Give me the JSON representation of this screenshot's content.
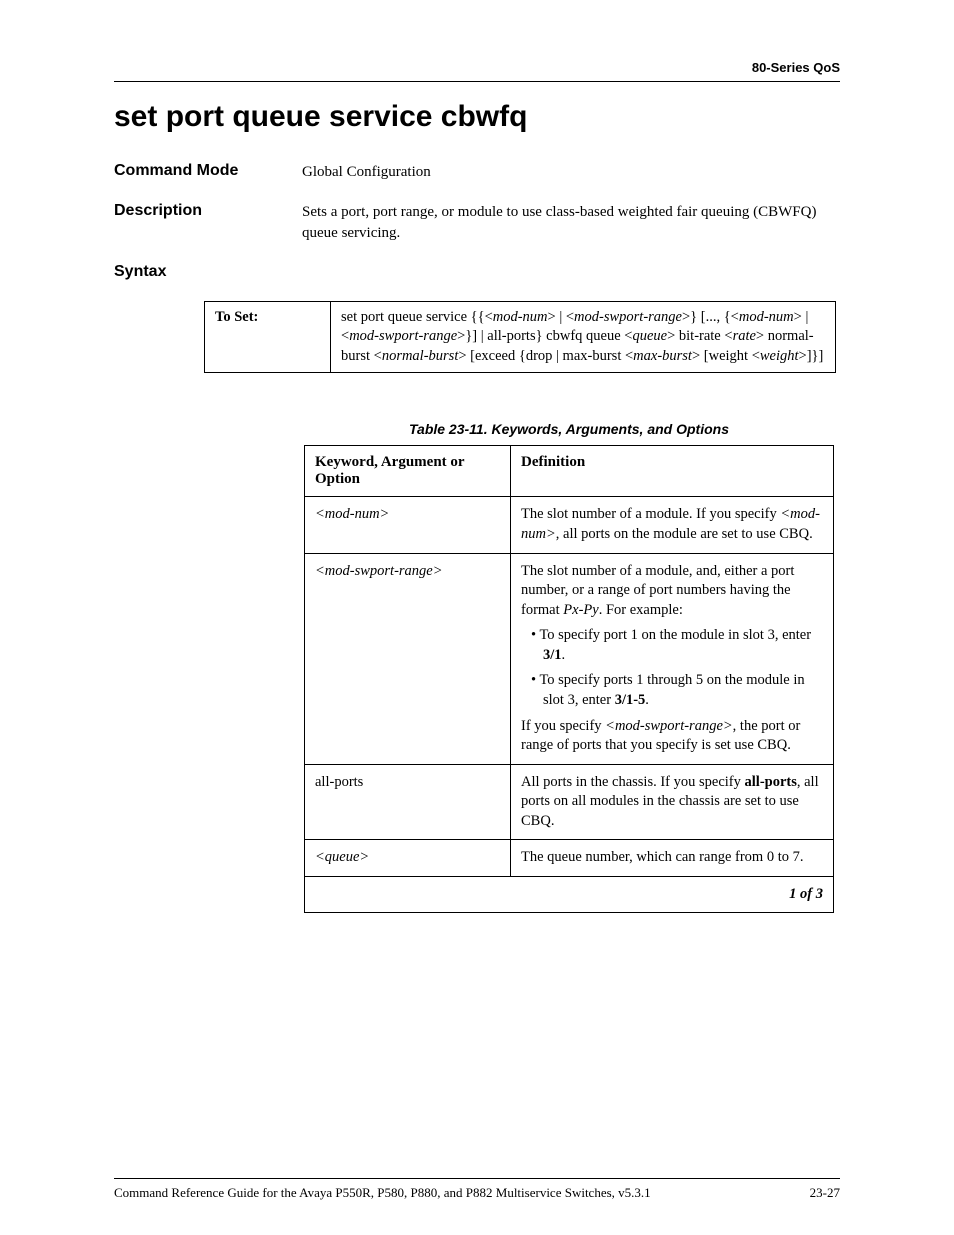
{
  "header": {
    "right": "80-Series QoS"
  },
  "title": "set port queue service cbwfq",
  "command_mode": {
    "label": "Command Mode",
    "value": "Global Configuration"
  },
  "description": {
    "label": "Description",
    "value": "Sets a port, port range, or module to use class-based weighted fair queuing (CBWFQ) queue servicing."
  },
  "syntax": {
    "label": "Syntax"
  },
  "syntax_table": {
    "to_set_label": "To Set:",
    "to_set_value_html": "set port queue service {{<<i>mod-num</i>> | <<i>mod-swport-range</i>>} [..., {<<i>mod-num</i>> | <<i>mod-swport-range</i>>}] | all-ports} cbwfq queue <<i>queue</i>> bit-rate <<i>rate</i>> normal-burst <<i>normal-burst</i>> [exceed {drop | max-burst <<i>max-burst</i>> [weight <<i>weight</i>>]}]"
  },
  "def_table": {
    "caption": "Table 23-11.  Keywords, Arguments, and Options",
    "col1": "Keyword, Argument or Option",
    "col2": "Definition",
    "rows": [
      {
        "kw_html": "<i>&lt;mod-num&gt;</i>",
        "def_html": "The slot number of a module. If you specify <i>&lt;mod-num&gt;</i>, all ports on the module are set to use CBQ."
      },
      {
        "kw_html": "<i>&lt;mod-swport-range&gt;</i>",
        "def_html": "The slot number of a module, and, either a port number, or a range of port numbers having the format <i>Px-Py</i>. For example:<div class=\"bullet-item\">• To specify port 1 on the module in slot 3, enter <b>3/1</b>.</div><div class=\"bullet-item\">• To specify ports 1 through 5 on the module in slot 3, enter <b>3/1-5</b>.</div>If you specify <i>&lt;mod-swport-range&gt;</i>, the port or range of ports that you specify is set use CBQ."
      },
      {
        "kw_html": "all-ports",
        "def_html": "All ports in the chassis. If you specify <b>all-ports</b>, all ports on all modules in the chassis are set to use CBQ."
      },
      {
        "kw_html": "<i>&lt;queue&gt;</i>",
        "def_html": "The queue number, which can range from 0 to 7."
      }
    ],
    "footer": "1 of 3"
  },
  "footer": {
    "left": "Command Reference Guide for the Avaya P550R, P580, P880, and P882 Multiservice Switches, v5.3.1",
    "right": "23-27"
  }
}
